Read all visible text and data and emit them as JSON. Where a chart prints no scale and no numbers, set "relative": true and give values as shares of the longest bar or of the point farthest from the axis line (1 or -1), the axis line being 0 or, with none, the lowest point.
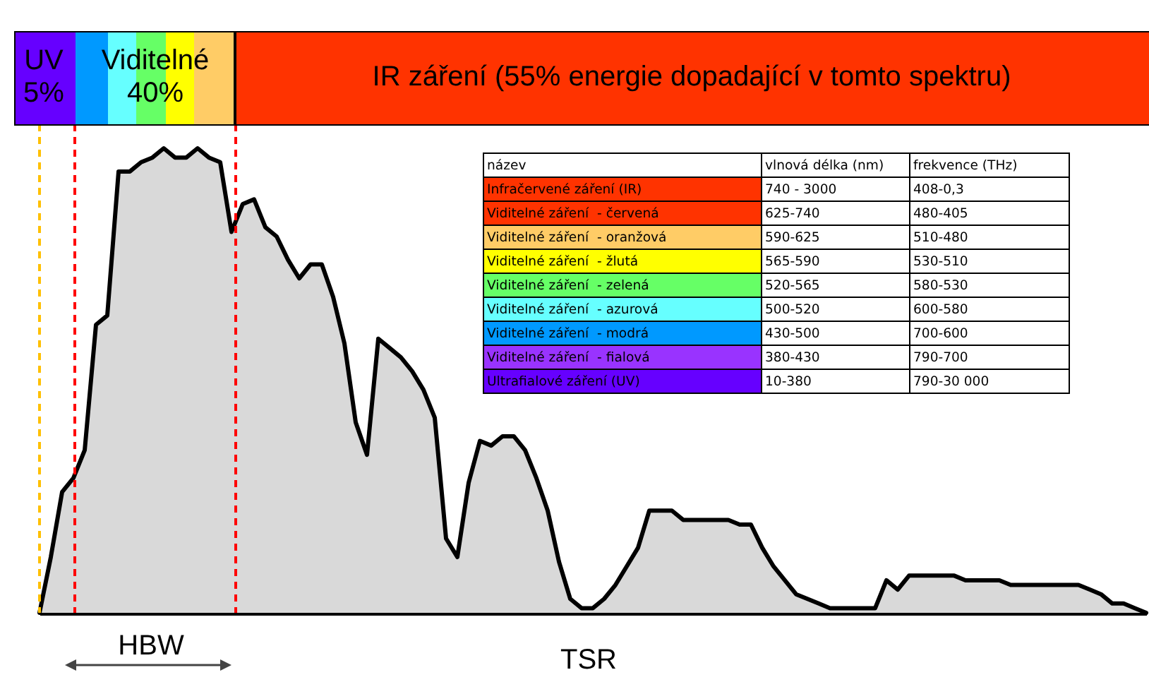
{
  "chart_data": [
    {
      "type": "area",
      "relative": true,
      "color": "#d9d9d9",
      "categories": [
        null,
        null,
        null,
        null,
        null,
        null,
        null,
        null,
        null,
        null,
        null,
        null,
        null,
        null,
        null,
        null,
        null,
        null,
        null,
        null,
        null,
        null,
        null,
        null,
        null,
        null,
        null,
        null,
        null,
        null,
        null,
        null,
        null,
        null,
        null,
        null,
        null,
        null,
        null,
        null,
        null,
        null,
        null,
        null,
        null,
        null,
        null,
        null,
        null,
        null,
        null,
        null,
        null,
        null,
        null,
        null,
        null,
        null,
        null,
        null,
        null,
        null,
        null,
        null,
        null,
        null,
        null,
        null,
        null,
        null,
        null,
        null,
        null,
        null,
        null,
        null,
        null,
        null,
        null,
        null,
        null,
        null,
        null,
        null,
        null,
        null,
        null,
        null,
        null,
        null,
        null,
        null,
        null,
        null,
        null,
        null,
        null,
        null,
        null
      ],
      "values": [
        0,
        0.12,
        0.26,
        0.29,
        0.35,
        0.62,
        0.64,
        0.95,
        0.95,
        0.97,
        0.98,
        1,
        0.98,
        0.98,
        1,
        0.98,
        0.97,
        0.82,
        0.88,
        0.89,
        0.83,
        0.81,
        0.76,
        0.72,
        0.75,
        0.75,
        0.68,
        0.58,
        0.41,
        0.34,
        0.59,
        0.57,
        0.55,
        0.52,
        0.48,
        0.42,
        0.16,
        0.12,
        0.28,
        0.37,
        0.36,
        0.38,
        0.38,
        0.35,
        0.29,
        0.22,
        0.11,
        0.03,
        0.01,
        0.01,
        0.03,
        0.06,
        0.1,
        0.14,
        0.22,
        0.22,
        0.22,
        0.2,
        0.2,
        0.2,
        0.2,
        0.2,
        0.19,
        0.19,
        0.14,
        0.1,
        0.07,
        0.04,
        0.03,
        0.02,
        0.01,
        0.01,
        0.01,
        0.01,
        0.01,
        0.07,
        0.05,
        0.08,
        0.08,
        0.08,
        0.08,
        0.08,
        0.07,
        0.07,
        0.07,
        0.07,
        0.06,
        0.06,
        0.06,
        0.06,
        0.06,
        0.06,
        0.06,
        0.05,
        0.04,
        0.02,
        0.02,
        0.01,
        0
      ],
      "annotations": [
        "UV\n5%",
        "Viditelné\n40%",
        "IR záření (55% energie dopadající v tomto spektru)",
        "HBW",
        "TSR"
      ]
    },
    {
      "type": "other",
      "annotations": [
        "název",
        "vlnová délka (nm)",
        "frekvence (THz)",
        "Infračervené záření (IR)",
        "740 - 3000",
        "408-0,3",
        "Viditelné záření  - červená",
        "625-740",
        "480-405",
        "Viditelné záření  - oranžová",
        "590-625",
        "510-480",
        "Viditelné záření  - žlutá",
        "565-590",
        "530-510",
        "Viditelné záření  - zelená",
        "520-565",
        "580-530",
        "Viditelné záření  - azurová",
        "500-520",
        "600-580",
        "Viditelné záření  - modrá",
        "430-500",
        "700-600",
        "Viditelné záření  - fialová",
        "380-430",
        "790-700",
        "Ultrafialové záření (UV)",
        "10-380",
        "790-30 000"
      ],
      "colors": [
        "#ffffff",
        "#ff3300",
        "#ff3300",
        "#ffcc66",
        "#ffff00",
        "#66ff66",
        "#66ffff",
        "#0099ff",
        "#9933ff",
        "#6600ff"
      ]
    }
  ]
}
